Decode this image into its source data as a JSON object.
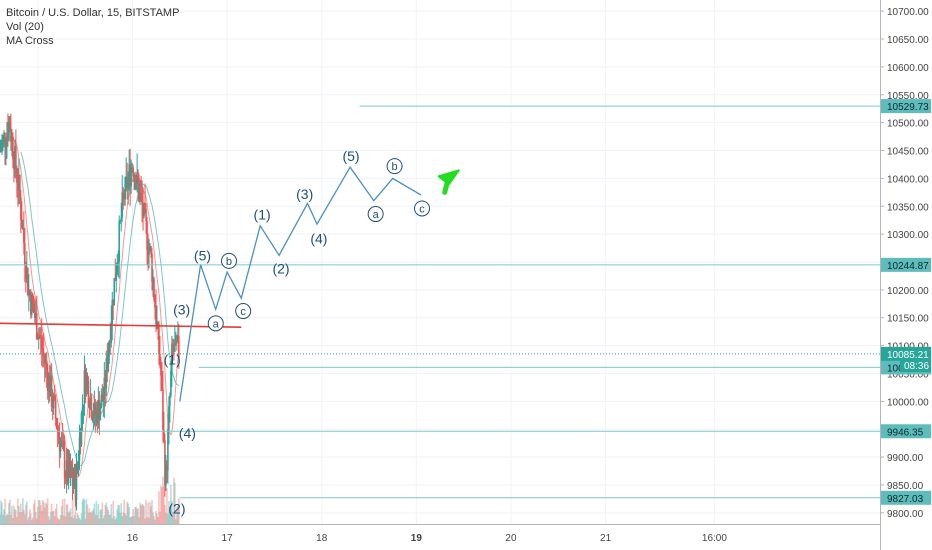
{
  "legend": {
    "symbol": "Bitcoin / U.S. Dollar, 15, BITSTAMP",
    "volume": "Vol (20)",
    "indicator": "MA Cross"
  },
  "colors": {
    "up": "#26a69a",
    "down": "#ef5350",
    "wave": "#4a90c0",
    "wave_label": "#1f4e79",
    "level_line": "#7fc8c8",
    "level_badge": "#5fbcbc",
    "trendline": "#e53935",
    "arrow": "#22dd22",
    "current_badge": "#26a69a"
  },
  "chart_data": {
    "type": "line",
    "title": "Bitcoin / U.S. Dollar, 15, BITSTAMP",
    "ylim": [
      9780,
      10720
    ],
    "yticks": [
      9800,
      9850,
      9900,
      9950,
      10000,
      10050,
      10100,
      10150,
      10200,
      10250,
      10300,
      10350,
      10400,
      10450,
      10500,
      10550,
      10600,
      10650,
      10700
    ],
    "ytick_labels": [
      "9800.00",
      "9850.00",
      "9900.00",
      "9950.00",
      "10000.00",
      "10050.00",
      "10100.00",
      "10150.00",
      "10200.00",
      "10250.00",
      "10300.00",
      "10350.00",
      "10400.00",
      "10450.00",
      "10500.00",
      "10550.00",
      "10600.00",
      "10650.00",
      "10700.00"
    ],
    "xlim": [
      14.6,
      23.9
    ],
    "xticks": [
      15,
      16,
      17,
      18,
      19,
      20,
      21,
      22.15
    ],
    "xtick_labels": [
      "15",
      "16",
      "17",
      "18",
      "19",
      "20",
      "21",
      "16:00"
    ],
    "bold_xtick": "19",
    "levels": [
      {
        "value": 10529.73,
        "label": "10529.73",
        "from": 18.4
      },
      {
        "value": 10244.87,
        "label": "10244.87",
        "from": 14.6
      },
      {
        "value": 10060.95,
        "label": "10060.95",
        "from": 16.7
      },
      {
        "value": 9946.35,
        "label": "9946.35",
        "from": 14.6
      },
      {
        "value": 9827.03,
        "label": "9827.03",
        "from": 16.5
      }
    ],
    "current_price": {
      "value": 10085.21,
      "label": "10085.21",
      "countdown": "08:36",
      "countdown_value": 10065
    },
    "trendline": {
      "x": [
        14.6,
        17.15
      ],
      "y": [
        10140,
        10133
      ]
    },
    "wave_path": {
      "x": [
        16.5,
        16.72,
        16.88,
        17.0,
        17.15,
        17.35,
        17.55,
        17.85,
        17.95,
        18.3,
        18.55,
        18.75,
        19.05
      ],
      "y": [
        10000,
        10245,
        10165,
        10232,
        10185,
        10315,
        10262,
        10355,
        10318,
        10420,
        10360,
        10400,
        10370
      ]
    },
    "wave_labels": [
      {
        "text": "(1)",
        "x": 16.42,
        "y": 10075,
        "circled": false
      },
      {
        "text": "(2)",
        "x": 16.47,
        "y": 9808,
        "circled": false
      },
      {
        "text": "(3)",
        "x": 16.52,
        "y": 10165,
        "circled": false
      },
      {
        "text": "(4)",
        "x": 16.58,
        "y": 9943,
        "circled": false
      },
      {
        "text": "(5)",
        "x": 16.74,
        "y": 10262,
        "circled": false
      },
      {
        "text": "a",
        "x": 16.88,
        "y": 10140,
        "circled": true
      },
      {
        "text": "b",
        "x": 17.02,
        "y": 10252,
        "circled": true
      },
      {
        "text": "c",
        "x": 17.17,
        "y": 10162,
        "circled": true
      },
      {
        "text": "(1)",
        "x": 17.37,
        "y": 10335,
        "circled": false
      },
      {
        "text": "(2)",
        "x": 17.57,
        "y": 10238,
        "circled": false
      },
      {
        "text": "(3)",
        "x": 17.82,
        "y": 10372,
        "circled": false
      },
      {
        "text": "(4)",
        "x": 17.97,
        "y": 10292,
        "circled": false
      },
      {
        "text": "(5)",
        "x": 18.31,
        "y": 10440,
        "circled": false
      },
      {
        "text": "a",
        "x": 18.57,
        "y": 10336,
        "circled": true
      },
      {
        "text": "b",
        "x": 18.77,
        "y": 10422,
        "circled": true
      },
      {
        "text": "c",
        "x": 19.06,
        "y": 10346,
        "circled": true
      }
    ],
    "arrow": {
      "x": 19.3,
      "y": 10400
    }
  }
}
